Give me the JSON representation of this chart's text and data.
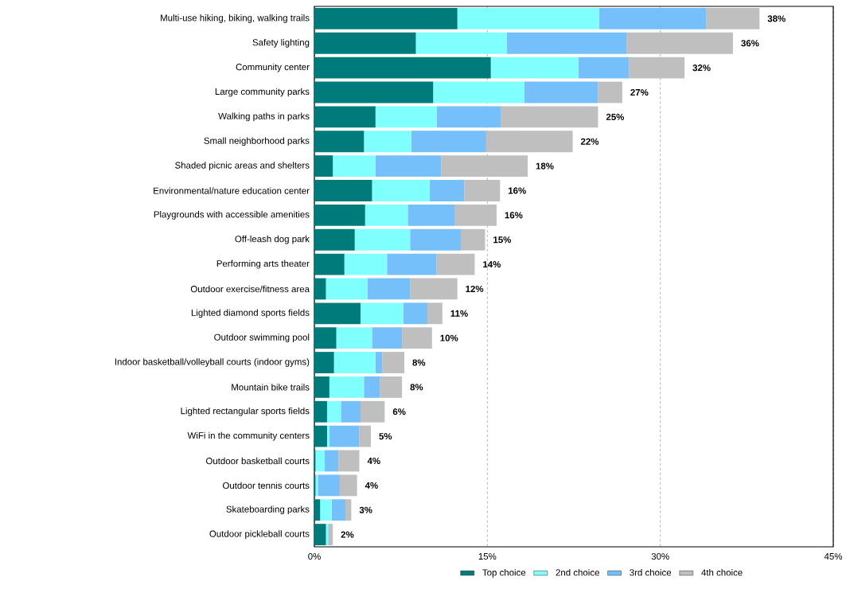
{
  "chart_data": {
    "type": "bar",
    "orientation": "horizontal",
    "stacked": true,
    "categories": [
      "Multi-use hiking, biking, walking trails",
      "Safety lighting",
      "Community center",
      "Large community parks",
      "Walking paths in parks",
      "Small neighborhood parks",
      "Shaded picnic areas and shelters",
      "Environmental/nature education center",
      "Playgrounds with accessible amenities",
      "Off-leash dog park",
      "Performing arts theater",
      "Outdoor exercise/fitness area",
      "Lighted diamond sports fields",
      "Outdoor swimming pool",
      "Indoor basketball/volleyball courts (indoor gyms)",
      "Mountain bike trails",
      "Lighted rectangular sports fields",
      "WiFi in the community centers",
      "Outdoor basketball courts",
      "Outdoor tennis courts",
      "Skateboarding parks",
      "Outdoor pickleball courts"
    ],
    "series": [
      {
        "name": "Top choice",
        "color": "#007b7b",
        "values": [
          12.4,
          8.8,
          15.3,
          10.3,
          5.3,
          4.3,
          1.6,
          5.0,
          4.4,
          3.5,
          2.6,
          1.0,
          4.0,
          1.9,
          1.7,
          1.3,
          1.1,
          1.1,
          0.1,
          0.1,
          0.5,
          1.0
        ]
      },
      {
        "name": "2nd choice",
        "color": "#80ffff",
        "values": [
          12.3,
          7.9,
          7.6,
          7.9,
          5.3,
          4.1,
          3.7,
          5.0,
          3.7,
          4.8,
          3.7,
          3.6,
          3.7,
          3.1,
          3.6,
          3.0,
          1.2,
          0.2,
          0.8,
          0.2,
          1.0,
          0.2
        ]
      },
      {
        "name": "3rd choice",
        "color": "#75bffa",
        "values": [
          9.3,
          10.4,
          4.4,
          6.4,
          5.6,
          6.5,
          5.7,
          3.0,
          4.1,
          4.4,
          4.3,
          3.7,
          2.1,
          2.6,
          0.6,
          1.4,
          1.7,
          2.6,
          1.2,
          1.9,
          1.2,
          0.1
        ]
      },
      {
        "name": "4th choice",
        "color": "#bfbfbf",
        "values": [
          4.6,
          9.2,
          4.8,
          2.1,
          8.4,
          7.5,
          7.5,
          3.1,
          3.6,
          2.1,
          3.3,
          4.1,
          1.3,
          2.6,
          1.9,
          1.9,
          2.1,
          1.0,
          1.8,
          1.5,
          0.5,
          0.3
        ]
      }
    ],
    "totals": [
      "38%",
      "36%",
      "32%",
      "27%",
      "25%",
      "22%",
      "18%",
      "16%",
      "16%",
      "15%",
      "14%",
      "12%",
      "11%",
      "10%",
      "8%",
      "8%",
      "6%",
      "5%",
      "4%",
      "4%",
      "3%",
      "2%"
    ],
    "xlim": [
      0,
      45
    ],
    "xticks": [
      {
        "value": 0,
        "label": "0%"
      },
      {
        "value": 15,
        "label": "15%"
      },
      {
        "value": 30,
        "label": "30%"
      },
      {
        "value": 45,
        "label": "45%"
      }
    ],
    "grid": "x",
    "legend": "bottom"
  }
}
